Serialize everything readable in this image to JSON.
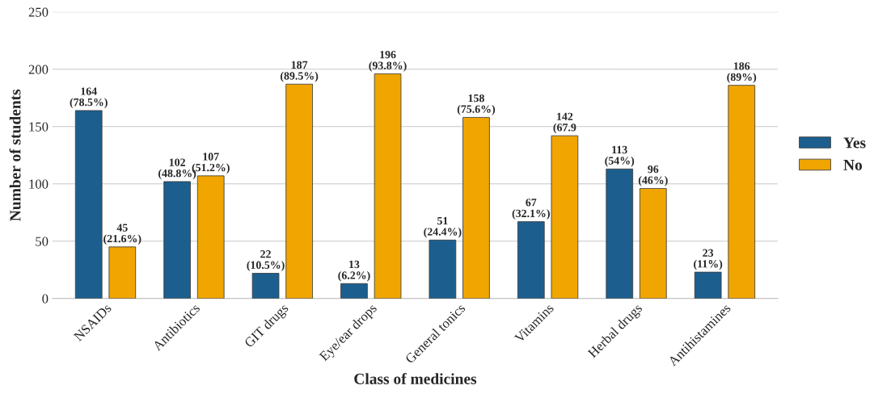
{
  "chart_data": {
    "type": "bar",
    "xlabel": "Class of medicines",
    "ylabel": "Number of students",
    "categories": [
      "NSAIDs",
      "Antibiotics",
      "GIT drugs",
      "Eye/ear drops",
      "General tonics",
      "Vitamins",
      "Herbal drugs",
      "Antihistamines"
    ],
    "series": [
      {
        "name": "Yes",
        "color": "#1c5f8f",
        "values": [
          164,
          102,
          22,
          13,
          51,
          67,
          113,
          23
        ],
        "value_labels": [
          "164\n(78.5%)",
          "102\n(48.8%)",
          "22\n(10.5%)",
          "13\n(6.2%)",
          "51\n(24.4%)",
          "67\n(32.1%)",
          "113\n(54%)",
          "23\n(11%)"
        ]
      },
      {
        "name": "No",
        "color": "#f0a500",
        "values": [
          45,
          107,
          187,
          196,
          158,
          142,
          96,
          186
        ],
        "value_labels": [
          "45\n(21.6%)",
          "107\n(51.2%)",
          "187\n(89.5%)",
          "196\n(93.8%)",
          "158\n(75.6%)",
          "142\n(67.9",
          "96\n(46%)",
          "186\n(89%)"
        ]
      }
    ],
    "ylim": [
      0,
      250
    ],
    "yticks": [
      0,
      50,
      100,
      150,
      200,
      250
    ],
    "grid": "y",
    "legend": "right"
  }
}
